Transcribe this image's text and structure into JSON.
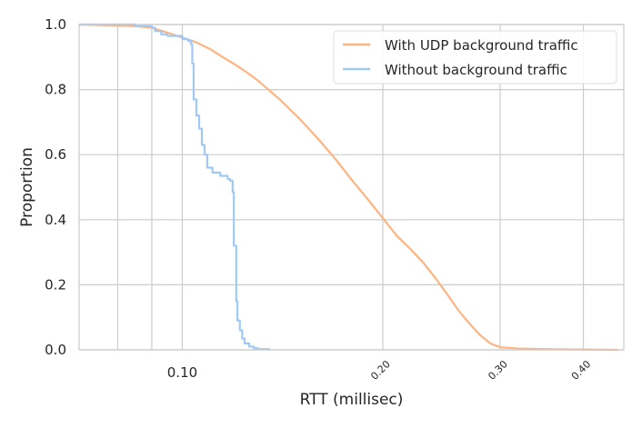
{
  "chart_data": {
    "type": "line",
    "subtype": "ecdf",
    "xlabel": "RTT (millisec)",
    "ylabel": "Proportion",
    "xscale": "log",
    "xlim": [
      0.07,
      0.46
    ],
    "ylim": [
      0,
      1
    ],
    "grid": true,
    "legend_position": "top-right",
    "x_ticks": [
      {
        "value": 0.1,
        "label": "0.10",
        "size": "large",
        "rotated": false
      },
      {
        "value": 0.2,
        "label": "0.20",
        "size": "small",
        "rotated": true
      },
      {
        "value": 0.3,
        "label": "0.30",
        "size": "small",
        "rotated": true
      },
      {
        "value": 0.4,
        "label": "0.40",
        "size": "small",
        "rotated": true
      }
    ],
    "x_minor_gridlines": [
      0.08,
      0.09,
      0.1,
      0.2,
      0.3,
      0.4
    ],
    "y_ticks": [
      {
        "value": 0.0,
        "label": "0.0"
      },
      {
        "value": 0.2,
        "label": "0.2"
      },
      {
        "value": 0.4,
        "label": "0.4"
      },
      {
        "value": 0.6,
        "label": "0.6"
      },
      {
        "value": 0.8,
        "label": "0.8"
      },
      {
        "value": 1.0,
        "label": "1.0"
      }
    ],
    "series": [
      {
        "name": "With UDP background traffic",
        "color": "#ffb482",
        "step": false,
        "points": [
          [
            0.07,
            1.0
          ],
          [
            0.085,
            0.995
          ],
          [
            0.09,
            0.99
          ],
          [
            0.095,
            0.975
          ],
          [
            0.1,
            0.96
          ],
          [
            0.105,
            0.945
          ],
          [
            0.11,
            0.925
          ],
          [
            0.115,
            0.9
          ],
          [
            0.12,
            0.877
          ],
          [
            0.125,
            0.853
          ],
          [
            0.13,
            0.827
          ],
          [
            0.14,
            0.77
          ],
          [
            0.15,
            0.71
          ],
          [
            0.16,
            0.648
          ],
          [
            0.17,
            0.585
          ],
          [
            0.18,
            0.52
          ],
          [
            0.19,
            0.462
          ],
          [
            0.2,
            0.405
          ],
          [
            0.21,
            0.35
          ],
          [
            0.22,
            0.31
          ],
          [
            0.23,
            0.268
          ],
          [
            0.24,
            0.22
          ],
          [
            0.25,
            0.17
          ],
          [
            0.26,
            0.12
          ],
          [
            0.27,
            0.08
          ],
          [
            0.28,
            0.045
          ],
          [
            0.29,
            0.02
          ],
          [
            0.3,
            0.008
          ],
          [
            0.32,
            0.004
          ],
          [
            0.35,
            0.002
          ],
          [
            0.4,
            0.001
          ],
          [
            0.45,
            0.0
          ]
        ]
      },
      {
        "name": "Without background traffic",
        "color": "#a1c9f4",
        "step": true,
        "points": [
          [
            0.07,
            1.0
          ],
          [
            0.085,
            0.995
          ],
          [
            0.09,
            0.99
          ],
          [
            0.091,
            0.98
          ],
          [
            0.093,
            0.97
          ],
          [
            0.095,
            0.965
          ],
          [
            0.1,
            0.955
          ],
          [
            0.102,
            0.95
          ],
          [
            0.103,
            0.94
          ],
          [
            0.1035,
            0.88
          ],
          [
            0.104,
            0.77
          ],
          [
            0.105,
            0.72
          ],
          [
            0.106,
            0.68
          ],
          [
            0.107,
            0.63
          ],
          [
            0.108,
            0.6
          ],
          [
            0.109,
            0.56
          ],
          [
            0.111,
            0.545
          ],
          [
            0.114,
            0.535
          ],
          [
            0.117,
            0.525
          ],
          [
            0.118,
            0.52
          ],
          [
            0.119,
            0.485
          ],
          [
            0.1195,
            0.32
          ],
          [
            0.1205,
            0.15
          ],
          [
            0.121,
            0.09
          ],
          [
            0.122,
            0.06
          ],
          [
            0.123,
            0.035
          ],
          [
            0.124,
            0.02
          ],
          [
            0.126,
            0.01
          ],
          [
            0.128,
            0.005
          ],
          [
            0.13,
            0.002
          ],
          [
            0.135,
            0.0
          ]
        ]
      }
    ]
  }
}
